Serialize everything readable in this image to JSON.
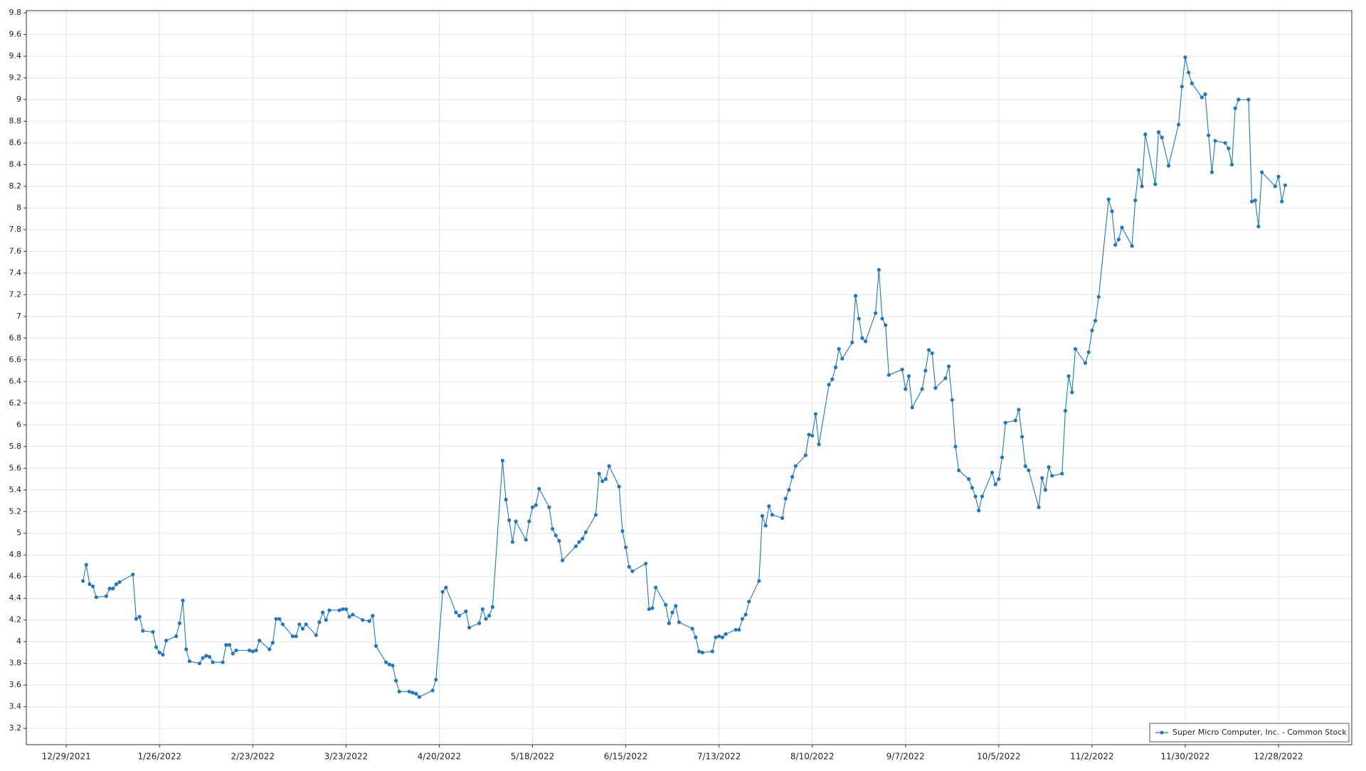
{
  "chart_data": {
    "type": "line",
    "legend": "bottom-right",
    "grid": true,
    "xlim": [
      "12/17/2021",
      "1/19/2023"
    ],
    "xticks": [
      "12/29/2021",
      "1/26/2022",
      "2/23/2022",
      "3/23/2022",
      "4/20/2022",
      "5/18/2022",
      "6/15/2022",
      "7/13/2022",
      "8/10/2022",
      "9/7/2022",
      "10/5/2022",
      "11/2/2022",
      "11/30/2022",
      "12/28/2022"
    ],
    "ylim": [
      3.05,
      9.82
    ],
    "yticks": [
      3.2,
      3.4,
      3.6,
      3.8,
      4,
      4.2,
      4.4,
      4.6,
      4.8,
      5,
      5.2,
      5.4,
      5.6,
      5.8,
      6,
      6.2,
      6.4,
      6.6,
      6.8,
      7,
      7.2,
      7.4,
      7.6,
      7.8,
      8,
      8.2,
      8.4,
      8.6,
      8.8,
      9,
      9.2,
      9.4,
      9.6,
      9.8
    ],
    "x": [
      "1/3/2022",
      "1/4/2022",
      "1/5/2022",
      "1/6/2022",
      "1/7/2022",
      "1/10/2022",
      "1/11/2022",
      "1/12/2022",
      "1/13/2022",
      "1/14/2022",
      "1/18/2022",
      "1/19/2022",
      "1/20/2022",
      "1/21/2022",
      "1/24/2022",
      "1/25/2022",
      "1/26/2022",
      "1/27/2022",
      "1/28/2022",
      "1/31/2022",
      "2/1/2022",
      "2/2/2022",
      "2/3/2022",
      "2/4/2022",
      "2/7/2022",
      "2/8/2022",
      "2/9/2022",
      "2/10/2022",
      "2/11/2022",
      "2/14/2022",
      "2/15/2022",
      "2/16/2022",
      "2/17/2022",
      "2/18/2022",
      "2/22/2022",
      "2/23/2022",
      "2/24/2022",
      "2/25/2022",
      "2/28/2022",
      "3/1/2022",
      "3/2/2022",
      "3/3/2022",
      "3/4/2022",
      "3/7/2022",
      "3/8/2022",
      "3/9/2022",
      "3/10/2022",
      "3/11/2022",
      "3/14/2022",
      "3/15/2022",
      "3/16/2022",
      "3/17/2022",
      "3/18/2022",
      "3/21/2022",
      "3/22/2022",
      "3/23/2022",
      "3/24/2022",
      "3/25/2022",
      "3/28/2022",
      "3/30/2022",
      "3/31/2022",
      "4/1/2022",
      "4/4/2022",
      "4/5/2022",
      "4/6/2022",
      "4/7/2022",
      "4/8/2022",
      "4/11/2022",
      "4/12/2022",
      "4/13/2022",
      "4/14/2022",
      "4/18/2022",
      "4/19/2022",
      "4/21/2022",
      "4/22/2022",
      "4/25/2022",
      "4/26/2022",
      "4/28/2022",
      "4/29/2022",
      "5/2/2022",
      "5/3/2022",
      "5/4/2022",
      "5/5/2022",
      "5/6/2022",
      "5/9/2022",
      "5/10/2022",
      "5/11/2022",
      "5/12/2022",
      "5/13/2022",
      "5/16/2022",
      "5/17/2022",
      "5/18/2022",
      "5/19/2022",
      "5/20/2022",
      "5/23/2022",
      "5/24/2022",
      "5/25/2022",
      "5/26/2022",
      "5/27/2022",
      "5/31/2022",
      "6/1/2022",
      "6/2/2022",
      "6/3/2022",
      "6/6/2022",
      "6/7/2022",
      "6/8/2022",
      "6/9/2022",
      "6/10/2022",
      "6/13/2022",
      "6/14/2022",
      "6/15/2022",
      "6/16/2022",
      "6/17/2022",
      "6/21/2022",
      "6/22/2022",
      "6/23/2022",
      "6/24/2022",
      "6/27/2022",
      "6/28/2022",
      "6/29/2022",
      "6/30/2022",
      "7/1/2022",
      "7/5/2022",
      "7/6/2022",
      "7/7/2022",
      "7/8/2022",
      "7/11/2022",
      "7/12/2022",
      "7/13/2022",
      "7/14/2022",
      "7/15/2022",
      "7/18/2022",
      "7/19/2022",
      "7/20/2022",
      "7/21/2022",
      "7/22/2022",
      "7/25/2022",
      "7/26/2022",
      "7/27/2022",
      "7/28/2022",
      "7/29/2022",
      "8/1/2022",
      "8/2/2022",
      "8/3/2022",
      "8/4/2022",
      "8/5/2022",
      "8/8/2022",
      "8/9/2022",
      "8/10/2022",
      "8/11/2022",
      "8/12/2022",
      "8/15/2022",
      "8/16/2022",
      "8/17/2022",
      "8/18/2022",
      "8/19/2022",
      "8/22/2022",
      "8/23/2022",
      "8/24/2022",
      "8/25/2022",
      "8/26/2022",
      "8/29/2022",
      "8/30/2022",
      "8/31/2022",
      "9/1/2022",
      "9/2/2022",
      "9/6/2022",
      "9/7/2022",
      "9/8/2022",
      "9/9/2022",
      "9/12/2022",
      "9/13/2022",
      "9/14/2022",
      "9/15/2022",
      "9/16/2022",
      "9/19/2022",
      "9/20/2022",
      "9/21/2022",
      "9/22/2022",
      "9/23/2022",
      "9/26/2022",
      "9/27/2022",
      "9/28/2022",
      "9/29/2022",
      "9/30/2022",
      "10/3/2022",
      "10/4/2022",
      "10/5/2022",
      "10/6/2022",
      "10/7/2022",
      "10/10/2022",
      "10/11/2022",
      "10/12/2022",
      "10/13/2022",
      "10/14/2022",
      "10/17/2022",
      "10/18/2022",
      "10/19/2022",
      "10/20/2022",
      "10/21/2022",
      "10/24/2022",
      "10/25/2022",
      "10/26/2022",
      "10/27/2022",
      "10/28/2022",
      "10/31/2022",
      "11/1/2022",
      "11/2/2022",
      "11/3/2022",
      "11/4/2022",
      "11/7/2022",
      "11/8/2022",
      "11/9/2022",
      "11/10/2022",
      "11/11/2022",
      "11/14/2022",
      "11/15/2022",
      "11/16/2022",
      "11/17/2022",
      "11/18/2022",
      "11/21/2022",
      "11/22/2022",
      "11/23/2022",
      "11/25/2022",
      "11/28/2022",
      "11/29/2022",
      "11/30/2022",
      "12/1/2022",
      "12/2/2022",
      "12/5/2022",
      "12/6/2022",
      "12/7/2022",
      "12/8/2022",
      "12/9/2022",
      "12/12/2022",
      "12/13/2022",
      "12/14/2022",
      "12/15/2022",
      "12/16/2022",
      "12/19/2022",
      "12/20/2022",
      "12/21/2022",
      "12/22/2022",
      "12/23/2022",
      "12/27/2022",
      "12/28/2022",
      "12/29/2022",
      "12/30/2022"
    ],
    "series": [
      {
        "name": "Super Micro Computer, Inc. - Common Stock",
        "color": "#2376b7",
        "values": [
          4.56,
          4.71,
          4.53,
          4.51,
          4.41,
          4.42,
          4.49,
          4.49,
          4.53,
          4.55,
          4.62,
          4.21,
          4.23,
          4.1,
          4.09,
          3.95,
          3.9,
          3.88,
          4.01,
          4.05,
          4.17,
          4.38,
          3.93,
          3.82,
          3.8,
          3.85,
          3.87,
          3.86,
          3.81,
          3.81,
          3.97,
          3.97,
          3.89,
          3.92,
          3.92,
          3.91,
          3.92,
          4.01,
          3.93,
          3.99,
          4.21,
          4.21,
          4.16,
          4.05,
          4.05,
          4.16,
          4.12,
          4.16,
          4.06,
          4.18,
          4.27,
          4.2,
          4.29,
          4.29,
          4.3,
          4.3,
          4.23,
          4.25,
          4.2,
          4.19,
          4.24,
          3.96,
          3.81,
          3.79,
          3.78,
          3.64,
          3.54,
          3.54,
          3.53,
          3.52,
          3.49,
          3.55,
          3.65,
          4.46,
          4.5,
          4.27,
          4.24,
          4.28,
          4.13,
          4.17,
          4.3,
          4.21,
          4.24,
          4.32,
          5.67,
          5.31,
          5.12,
          4.92,
          5.11,
          4.94,
          5.11,
          5.24,
          5.26,
          5.41,
          5.24,
          5.04,
          4.98,
          4.93,
          4.75,
          4.88,
          4.92,
          4.95,
          5.01,
          5.17,
          5.55,
          5.48,
          5.5,
          5.62,
          5.43,
          5.02,
          4.87,
          4.69,
          4.65,
          4.72,
          4.3,
          4.31,
          4.5,
          4.34,
          4.17,
          4.27,
          4.33,
          4.18,
          4.12,
          4.04,
          3.91,
          3.9,
          3.91,
          4.04,
          4.05,
          4.04,
          4.07,
          4.11,
          4.11,
          4.21,
          4.25,
          4.37,
          4.56,
          5.16,
          5.07,
          5.25,
          5.17,
          5.14,
          5.32,
          5.4,
          5.52,
          5.62,
          5.72,
          5.91,
          5.9,
          6.1,
          5.82,
          6.37,
          6.42,
          6.53,
          6.7,
          6.61,
          6.76,
          7.19,
          6.98,
          6.8,
          6.77,
          7.03,
          7.43,
          6.98,
          6.92,
          6.46,
          6.51,
          6.33,
          6.45,
          6.16,
          6.33,
          6.5,
          6.69,
          6.66,
          6.34,
          6.43,
          6.54,
          6.23,
          5.8,
          5.58,
          5.5,
          5.42,
          5.34,
          5.21,
          5.34,
          5.56,
          5.45,
          5.5,
          5.7,
          6.02,
          6.04,
          6.14,
          5.89,
          5.62,
          5.58,
          5.24,
          5.51,
          5.4,
          5.61,
          5.53,
          5.55,
          6.13,
          6.45,
          6.3,
          6.7,
          6.57,
          6.67,
          6.87,
          6.96,
          7.18,
          8.08,
          7.97,
          7.66,
          7.71,
          7.82,
          7.65,
          8.07,
          8.35,
          8.2,
          8.68,
          8.22,
          8.7,
          8.65,
          8.39,
          8.77,
          9.12,
          9.39,
          9.25,
          9.15,
          9.02,
          9.05,
          8.67,
          8.33,
          8.62,
          8.6,
          8.55,
          8.4,
          8.92,
          9.0,
          9.0,
          8.06,
          8.07,
          7.83,
          8.33,
          8.2,
          8.29,
          8.06,
          8.21
        ]
      }
    ]
  }
}
